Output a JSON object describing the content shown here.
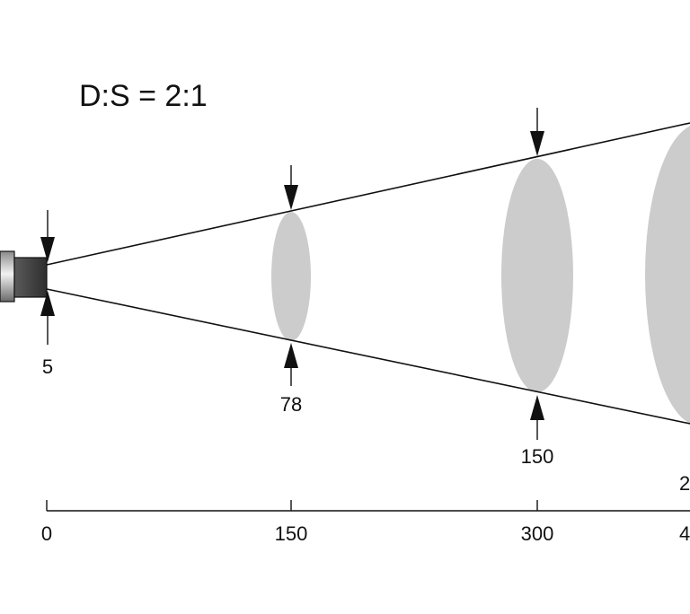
{
  "ratio_label": "D:S = 2:1",
  "spot_labels": [
    "5",
    "78",
    "150",
    "2"
  ],
  "axis_ticks": [
    "0",
    "150",
    "300",
    "4"
  ],
  "colors": {
    "line": "#111111",
    "spot_fill": "#cccccc",
    "sensor_dark": "#3a3a3a",
    "sensor_light": "#dcdcdc"
  },
  "icons": [
    "sensor-body",
    "down-arrow-icon",
    "up-arrow-icon"
  ]
}
